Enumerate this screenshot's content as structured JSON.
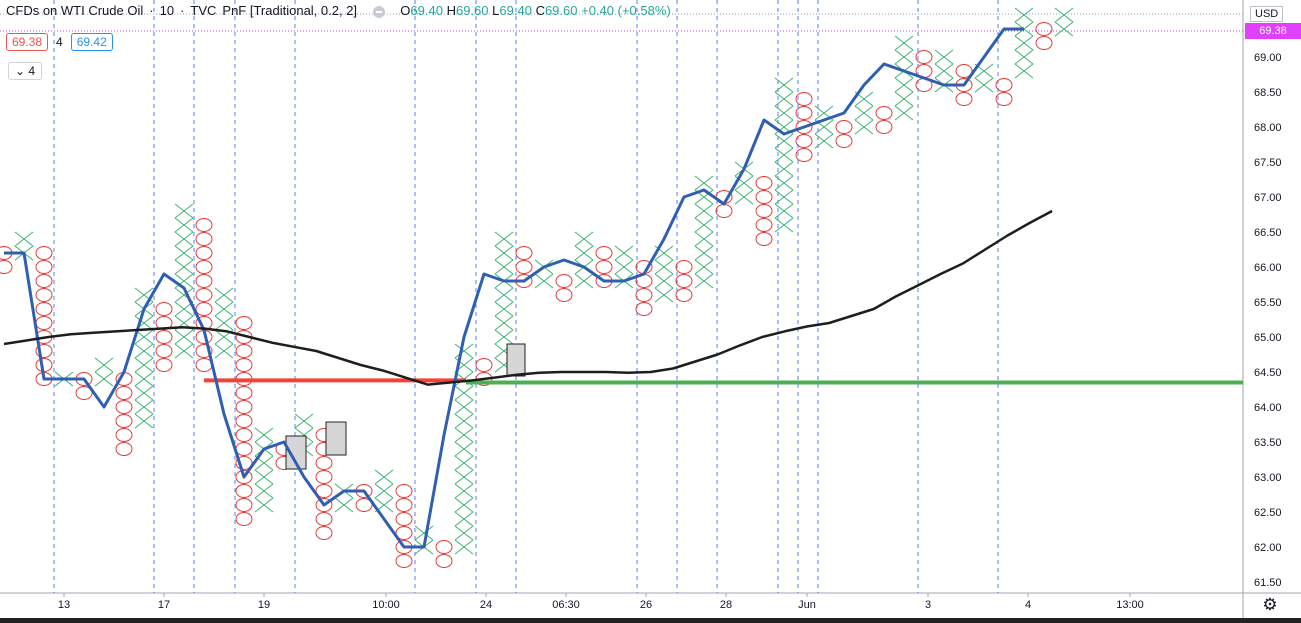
{
  "header": {
    "symbol": "CFDs on WTI Crude Oil",
    "interval": "10",
    "exchange": "TVC",
    "chart_type": "PnF [Traditional, 0.2, 2]",
    "open_label": "O",
    "open": "69.40",
    "high_label": "H",
    "high": "69.60",
    "low_label": "L",
    "low": "69.40",
    "close_label": "C",
    "close": "69.60",
    "change": "+0.40 (+0.58%)",
    "bid": "69.38",
    "spread": "4",
    "ask": "69.42",
    "indicator_value": "4"
  },
  "axis": {
    "currency": "USD",
    "last_price": "69.38"
  },
  "colors": {
    "x": "#3cb371",
    "o": "#e53935",
    "line": "#2f5fb3",
    "ma": "#1e1e1e",
    "red_level": "#f44336",
    "green_level": "#4caf50",
    "grid": "#2962ff",
    "price_tag": "#e040fb"
  },
  "chart_data": {
    "type": "line",
    "ylim": [
      61.4,
      69.8
    ],
    "y_ticks": [
      "69.00",
      "68.50",
      "68.00",
      "67.50",
      "67.00",
      "66.50",
      "66.00",
      "65.50",
      "65.00",
      "64.50",
      "64.00",
      "63.50",
      "63.00",
      "62.50",
      "62.00",
      "61.50"
    ],
    "x_ticks": [
      "13",
      "17",
      "19",
      "10:00",
      "24",
      "06:30",
      "26",
      "28",
      "Jun",
      "3",
      "4",
      "13:00"
    ],
    "series": [
      {
        "values": [
          66.2,
          66.2,
          64.4,
          64.4,
          64.4,
          64.0,
          64.5,
          65.4,
          65.9,
          65.7,
          65.1,
          63.9,
          63.0,
          63.4,
          63.5,
          63.0,
          62.6,
          62.8,
          62.8,
          62.4,
          62.0,
          62.0,
          63.6,
          65.0,
          65.9,
          65.8,
          65.8,
          66.0,
          66.1,
          66.0,
          65.8,
          65.8,
          65.9,
          66.4,
          67.0,
          67.1,
          66.9,
          67.4,
          68.1,
          67.9,
          68.0,
          68.1,
          68.2,
          68.6,
          68.9,
          68.8,
          68.7,
          68.6,
          68.6,
          69.0,
          69.4,
          69.4
        ]
      },
      {
        "values": [
          64.9,
          64.95,
          65.0,
          65.04,
          65.06,
          65.08,
          65.1,
          65.12,
          65.14,
          65.12,
          65.08,
          65.0,
          64.92,
          64.86,
          64.8,
          64.7,
          64.6,
          64.52,
          64.42,
          64.32,
          64.35,
          64.38,
          64.42,
          64.46,
          64.49,
          64.5,
          64.5,
          64.5,
          64.49,
          64.5,
          64.55,
          64.65,
          64.75,
          64.88,
          65.0,
          65.08,
          65.15,
          65.2,
          65.3,
          65.4,
          65.58,
          65.74,
          65.9,
          66.05,
          66.25,
          66.45,
          66.63,
          66.8
        ]
      }
    ],
    "levels": [
      {
        "value": 64.38,
        "from_label": "17",
        "color": "red"
      },
      {
        "value": 64.35,
        "from_label": "24",
        "color": "green"
      }
    ]
  }
}
